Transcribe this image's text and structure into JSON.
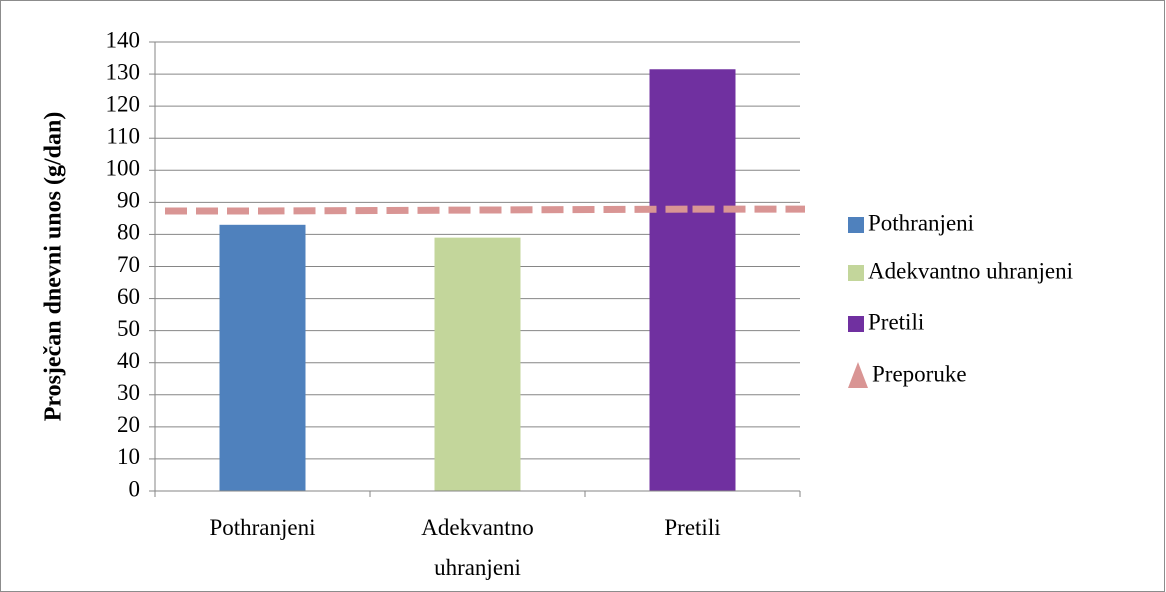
{
  "chart_data": {
    "type": "bar",
    "categories": [
      "Pothranjeni",
      "Adekvantno uhranjeni",
      "Pretili"
    ],
    "category_lines": [
      [
        "Pothranjeni"
      ],
      [
        "Adekvantno",
        "uhranjeni"
      ],
      [
        "Pretili"
      ]
    ],
    "y_label": "Prosječan dnevni unos (g/dan)",
    "series": [
      {
        "name": "Pothranjeni",
        "color": "#4f81bd",
        "values": [
          83,
          null,
          null
        ]
      },
      {
        "name": "Adekvantno uhranjeni",
        "color": "#c3d69b",
        "values": [
          null,
          79,
          null
        ]
      },
      {
        "name": "Pretili",
        "color": "#7030a0",
        "values": [
          null,
          null,
          131.5
        ]
      },
      {
        "name": "Preporuke",
        "type": "line",
        "dashed": true,
        "color": "#d99594",
        "values": [
          87.3,
          87.6,
          87.9
        ]
      }
    ],
    "ylim": [
      0,
      140
    ],
    "yticks": [
      0,
      10,
      20,
      30,
      40,
      50,
      60,
      70,
      80,
      90,
      100,
      110,
      120,
      130,
      140
    ],
    "grid": true,
    "legend": "right"
  }
}
